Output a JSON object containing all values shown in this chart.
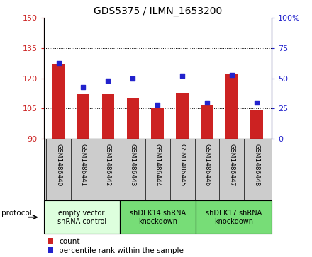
{
  "title": "GDS5375 / ILMN_1653200",
  "samples": [
    "GSM1486440",
    "GSM1486441",
    "GSM1486442",
    "GSM1486443",
    "GSM1486444",
    "GSM1486445",
    "GSM1486446",
    "GSM1486447",
    "GSM1486448"
  ],
  "counts": [
    127,
    112,
    112,
    110,
    105,
    113,
    107,
    122,
    104
  ],
  "percentiles": [
    63,
    43,
    48,
    50,
    28,
    52,
    30,
    53,
    30
  ],
  "ylim_left": [
    90,
    150
  ],
  "ylim_right": [
    0,
    100
  ],
  "yticks_left": [
    90,
    105,
    120,
    135,
    150
  ],
  "yticks_right": [
    0,
    25,
    50,
    75,
    100
  ],
  "ytick_labels_left": [
    "90",
    "105",
    "120",
    "135",
    "150"
  ],
  "ytick_labels_right": [
    "0",
    "25",
    "50",
    "75",
    "100%"
  ],
  "bar_color": "#cc2222",
  "dot_color": "#2222cc",
  "bar_bottom": 90,
  "protocol_groups": [
    {
      "label": "empty vector\nshRNA control",
      "start": 0,
      "end": 3,
      "color": "#ddffdd"
    },
    {
      "label": "shDEK14 shRNA\nknockdown",
      "start": 3,
      "end": 6,
      "color": "#77dd77"
    },
    {
      "label": "shDEK17 shRNA\nknockdown",
      "start": 6,
      "end": 9,
      "color": "#77dd77"
    }
  ],
  "legend_count_label": "count",
  "legend_pct_label": "percentile rank within the sample",
  "protocol_label": "protocol",
  "tick_area_bg": "#cccccc",
  "fig_bg": "#ffffff"
}
